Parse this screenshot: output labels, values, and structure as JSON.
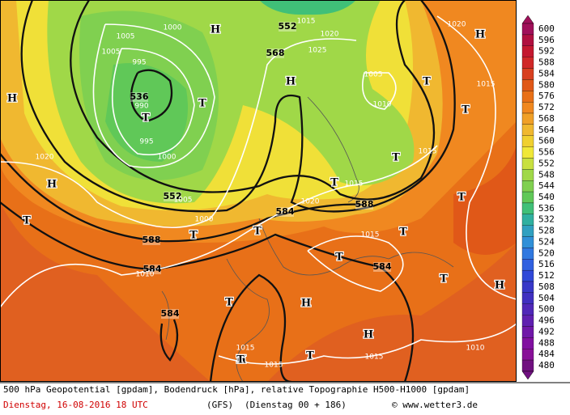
{
  "caption": {
    "line1": "500 hPa Geopotential [gpdam], Bodendruck [hPa], relative Topographie H500-H1000 [gpdam]",
    "date": "Dienstag, 16-08-2016  18 UTC",
    "model": "(GFS)",
    "run": "(Dienstag 00 + 186)",
    "credit": "© www.wetter3.de"
  },
  "colorbar": {
    "levels": [
      600,
      596,
      592,
      588,
      584,
      580,
      576,
      572,
      568,
      564,
      560,
      556,
      552,
      548,
      544,
      540,
      536,
      532,
      528,
      524,
      520,
      516,
      512,
      508,
      504,
      500,
      496,
      492,
      488,
      484,
      480
    ],
    "colors": [
      "#a0105a",
      "#b01040",
      "#c41830",
      "#d02828",
      "#d84020",
      "#e05818",
      "#e87018",
      "#f08820",
      "#f0a028",
      "#f0b830",
      "#f0d030",
      "#f0e838",
      "#c8e040",
      "#a0d848",
      "#80d050",
      "#60c858",
      "#40c078",
      "#30b0a0",
      "#30a0c0",
      "#3090d8",
      "#3078e0",
      "#3060e0",
      "#3048d8",
      "#3838c8",
      "#4030c0",
      "#5028b8",
      "#6020b0",
      "#7018a8",
      "#8010a0",
      "#881098",
      "#701080"
    ]
  },
  "map": {
    "height_labels": [
      552,
      568,
      536,
      552,
      584,
      588,
      588,
      584,
      584,
      584
    ],
    "pressure_labels": [
      1015,
      1020,
      1025,
      1005,
      1005,
      1000,
      995,
      990,
      995,
      1000,
      1020,
      1005,
      1000,
      1010,
      1005,
      1010,
      1015,
      1015,
      1020,
      1015,
      1020,
      1015,
      1015,
      1015,
      1015,
      1010
    ],
    "systems": [
      "H",
      "H",
      "H",
      "H",
      "H",
      "H",
      "H",
      "H",
      "H",
      "T",
      "T",
      "T",
      "T",
      "T",
      "T",
      "T",
      "T",
      "T",
      "T",
      "T",
      "T",
      "T",
      "T",
      "T",
      "T"
    ]
  }
}
